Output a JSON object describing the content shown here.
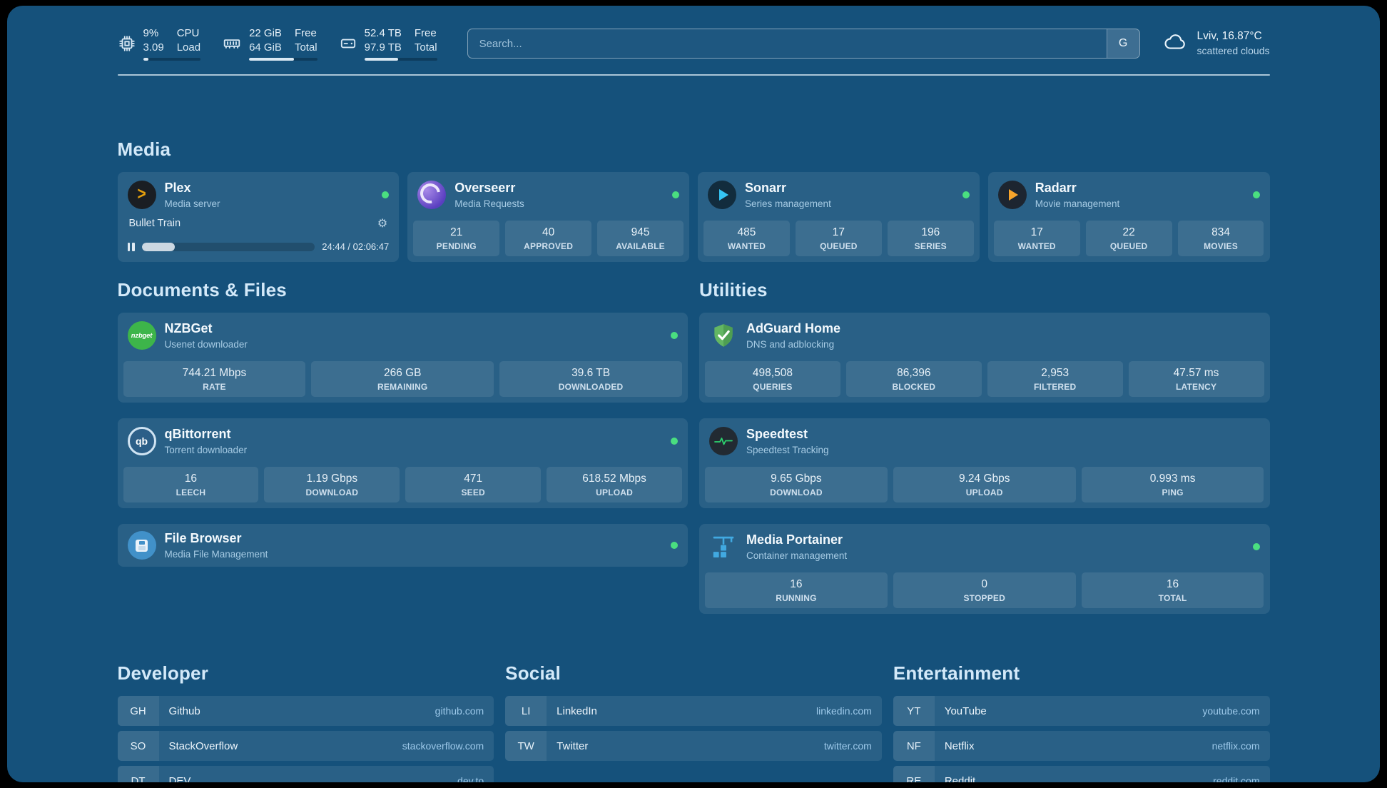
{
  "theme": {
    "background": "#15517b",
    "status_green": "#4ade80",
    "link_blue": "#9dc9ea",
    "plex_gold": "#e5a00d",
    "sonarr_blue": "#35c5f4",
    "radarr_orange": "#f7a42b",
    "nzbget_green": "#3db54a",
    "adguard_green": "#63b663",
    "speedtest_green": "#2dd36f",
    "portainer_blue": "#41a9e1"
  },
  "icons": {
    "gear": "⚙"
  },
  "header": {
    "resources": [
      {
        "id": "cpu",
        "values": [
          "9%",
          "3.09"
        ],
        "labels": [
          "CPU",
          "Load"
        ],
        "percent": 9
      },
      {
        "id": "memory",
        "values": [
          "22 GiB",
          "64 GiB"
        ],
        "labels": [
          "Free",
          "Total"
        ],
        "percent": 66
      },
      {
        "id": "disk",
        "values": [
          "52.4 TB",
          "97.9 TB"
        ],
        "labels": [
          "Free",
          "Total"
        ],
        "percent": 46
      }
    ],
    "search": {
      "placeholder": "Search...",
      "button": "G",
      "value": ""
    },
    "weather": {
      "location": "Lviv, 16.87°C",
      "condition": "scattered clouds"
    }
  },
  "sections": {
    "media": {
      "title": "Media",
      "plex": {
        "name": "Plex",
        "desc": "Media server",
        "now_playing": "Bullet Train",
        "time": "24:44 / 02:06:47",
        "progress_percent": 19
      },
      "overseerr": {
        "name": "Overseerr",
        "desc": "Media Requests",
        "stats": [
          {
            "value": "21",
            "label": "PENDING"
          },
          {
            "value": "40",
            "label": "APPROVED"
          },
          {
            "value": "945",
            "label": "AVAILABLE"
          }
        ]
      },
      "sonarr": {
        "name": "Sonarr",
        "desc": "Series management",
        "stats": [
          {
            "value": "485",
            "label": "WANTED"
          },
          {
            "value": "17",
            "label": "QUEUED"
          },
          {
            "value": "196",
            "label": "SERIES"
          }
        ]
      },
      "radarr": {
        "name": "Radarr",
        "desc": "Movie management",
        "stats": [
          {
            "value": "17",
            "label": "WANTED"
          },
          {
            "value": "22",
            "label": "QUEUED"
          },
          {
            "value": "834",
            "label": "MOVIES"
          }
        ]
      }
    },
    "documents": {
      "title": "Documents & Files",
      "nzbget": {
        "name": "NZBGet",
        "desc": "Usenet downloader",
        "icon_text": "nzbget",
        "stats": [
          {
            "value": "744.21 Mbps",
            "label": "RATE"
          },
          {
            "value": "266 GB",
            "label": "REMAINING"
          },
          {
            "value": "39.6 TB",
            "label": "DOWNLOADED"
          }
        ]
      },
      "qbittorrent": {
        "name": "qBittorrent",
        "desc": "Torrent downloader",
        "icon_text": "qb",
        "stats": [
          {
            "value": "16",
            "label": "LEECH"
          },
          {
            "value": "1.19 Gbps",
            "label": "DOWNLOAD"
          },
          {
            "value": "471",
            "label": "SEED"
          },
          {
            "value": "618.52 Mbps",
            "label": "UPLOAD"
          }
        ]
      },
      "filebrowser": {
        "name": "File Browser",
        "desc": "Media File Management"
      }
    },
    "utilities": {
      "title": "Utilities",
      "adguard": {
        "name": "AdGuard Home",
        "desc": "DNS and adblocking",
        "stats": [
          {
            "value": "498,508",
            "label": "QUERIES"
          },
          {
            "value": "86,396",
            "label": "BLOCKED"
          },
          {
            "value": "2,953",
            "label": "FILTERED"
          },
          {
            "value": "47.57 ms",
            "label": "LATENCY"
          }
        ]
      },
      "speedtest": {
        "name": "Speedtest",
        "desc": "Speedtest Tracking",
        "stats": [
          {
            "value": "9.65 Gbps",
            "label": "DOWNLOAD"
          },
          {
            "value": "9.24 Gbps",
            "label": "UPLOAD"
          },
          {
            "value": "0.993 ms",
            "label": "PING"
          }
        ]
      },
      "portainer": {
        "name": "Media Portainer",
        "desc": "Container management",
        "stats": [
          {
            "value": "16",
            "label": "RUNNING"
          },
          {
            "value": "0",
            "label": "STOPPED"
          },
          {
            "value": "16",
            "label": "TOTAL"
          }
        ]
      }
    }
  },
  "bookmarks": {
    "developer": {
      "title": "Developer",
      "items": [
        {
          "abbr": "GH",
          "name": "Github",
          "url": "github.com"
        },
        {
          "abbr": "SO",
          "name": "StackOverflow",
          "url": "stackoverflow.com"
        },
        {
          "abbr": "DT",
          "name": "DEV",
          "url": "dev.to"
        }
      ]
    },
    "social": {
      "title": "Social",
      "items": [
        {
          "abbr": "LI",
          "name": "LinkedIn",
          "url": "linkedin.com"
        },
        {
          "abbr": "TW",
          "name": "Twitter",
          "url": "twitter.com"
        }
      ]
    },
    "entertainment": {
      "title": "Entertainment",
      "items": [
        {
          "abbr": "YT",
          "name": "YouTube",
          "url": "youtube.com"
        },
        {
          "abbr": "NF",
          "name": "Netflix",
          "url": "netflix.com"
        },
        {
          "abbr": "RE",
          "name": "Reddit",
          "url": "reddit.com"
        }
      ]
    }
  }
}
